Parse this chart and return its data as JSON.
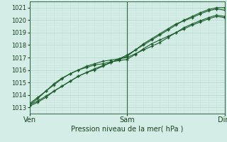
{
  "xlabel": "Pression niveau de la mer( hPa )",
  "ylim": [
    1012.5,
    1021.5
  ],
  "xlim": [
    0,
    96
  ],
  "yticks": [
    1013,
    1014,
    1015,
    1016,
    1017,
    1018,
    1019,
    1020,
    1021
  ],
  "background_color": "#d4ede6",
  "grid_major_color": "#b8d9cf",
  "grid_minor_color": "#c8e4dc",
  "line_color": "#1a5c2a",
  "vline_color": "#336644",
  "series": [
    {
      "x": [
        0,
        4,
        8,
        12,
        16,
        20,
        24,
        28,
        32,
        36,
        40,
        44,
        48,
        52,
        56,
        60,
        64,
        68,
        72,
        76,
        80,
        84,
        88,
        92,
        96
      ],
      "y": [
        1013.2,
        1013.5,
        1013.9,
        1014.3,
        1014.7,
        1015.1,
        1015.5,
        1015.8,
        1016.0,
        1016.3,
        1016.6,
        1016.9,
        1017.2,
        1017.6,
        1018.0,
        1018.4,
        1018.8,
        1019.2,
        1019.6,
        1020.0,
        1020.3,
        1020.6,
        1020.85,
        1021.0,
        1021.0
      ]
    },
    {
      "x": [
        0,
        4,
        8,
        12,
        16,
        20,
        24,
        28,
        32,
        36,
        40,
        44,
        48,
        52,
        56,
        60,
        64,
        68,
        72,
        76,
        80,
        84,
        88,
        92,
        96
      ],
      "y": [
        1013.1,
        1013.4,
        1013.8,
        1014.3,
        1014.7,
        1015.1,
        1015.5,
        1015.8,
        1016.1,
        1016.35,
        1016.6,
        1016.85,
        1017.1,
        1017.6,
        1018.1,
        1018.5,
        1018.9,
        1019.3,
        1019.7,
        1019.95,
        1020.2,
        1020.5,
        1020.75,
        1020.9,
        1020.8
      ]
    },
    {
      "x": [
        0,
        4,
        8,
        12,
        16,
        20,
        24,
        28,
        32,
        36,
        40,
        44,
        48,
        52,
        56,
        60,
        64,
        68,
        72,
        76,
        80,
        84,
        88,
        92,
        96
      ],
      "y": [
        1013.3,
        1013.8,
        1014.3,
        1014.8,
        1015.3,
        1015.7,
        1016.0,
        1016.3,
        1016.5,
        1016.7,
        1016.8,
        1016.9,
        1017.0,
        1017.3,
        1017.6,
        1017.9,
        1018.2,
        1018.6,
        1019.0,
        1019.4,
        1019.7,
        1019.95,
        1020.2,
        1020.4,
        1020.3
      ]
    },
    {
      "x": [
        0,
        4,
        8,
        12,
        16,
        20,
        24,
        28,
        32,
        36,
        40,
        44,
        48,
        52,
        56,
        60,
        64,
        68,
        72,
        76,
        80,
        84,
        88,
        92,
        96
      ],
      "y": [
        1013.2,
        1013.7,
        1014.3,
        1014.9,
        1015.35,
        1015.7,
        1016.0,
        1016.2,
        1016.4,
        1016.5,
        1016.65,
        1016.75,
        1016.85,
        1017.25,
        1017.7,
        1018.1,
        1018.4,
        1018.7,
        1019.0,
        1019.3,
        1019.6,
        1019.85,
        1020.1,
        1020.3,
        1020.2
      ]
    }
  ],
  "xtick_day_labels": [
    [
      "Ven",
      0
    ],
    [
      "Sam",
      48
    ],
    [
      "Dim",
      96
    ]
  ],
  "vline_positions": [
    0,
    48,
    96
  ],
  "xlabel_fontsize": 7,
  "ytick_fontsize": 6,
  "xtick_fontsize": 7
}
